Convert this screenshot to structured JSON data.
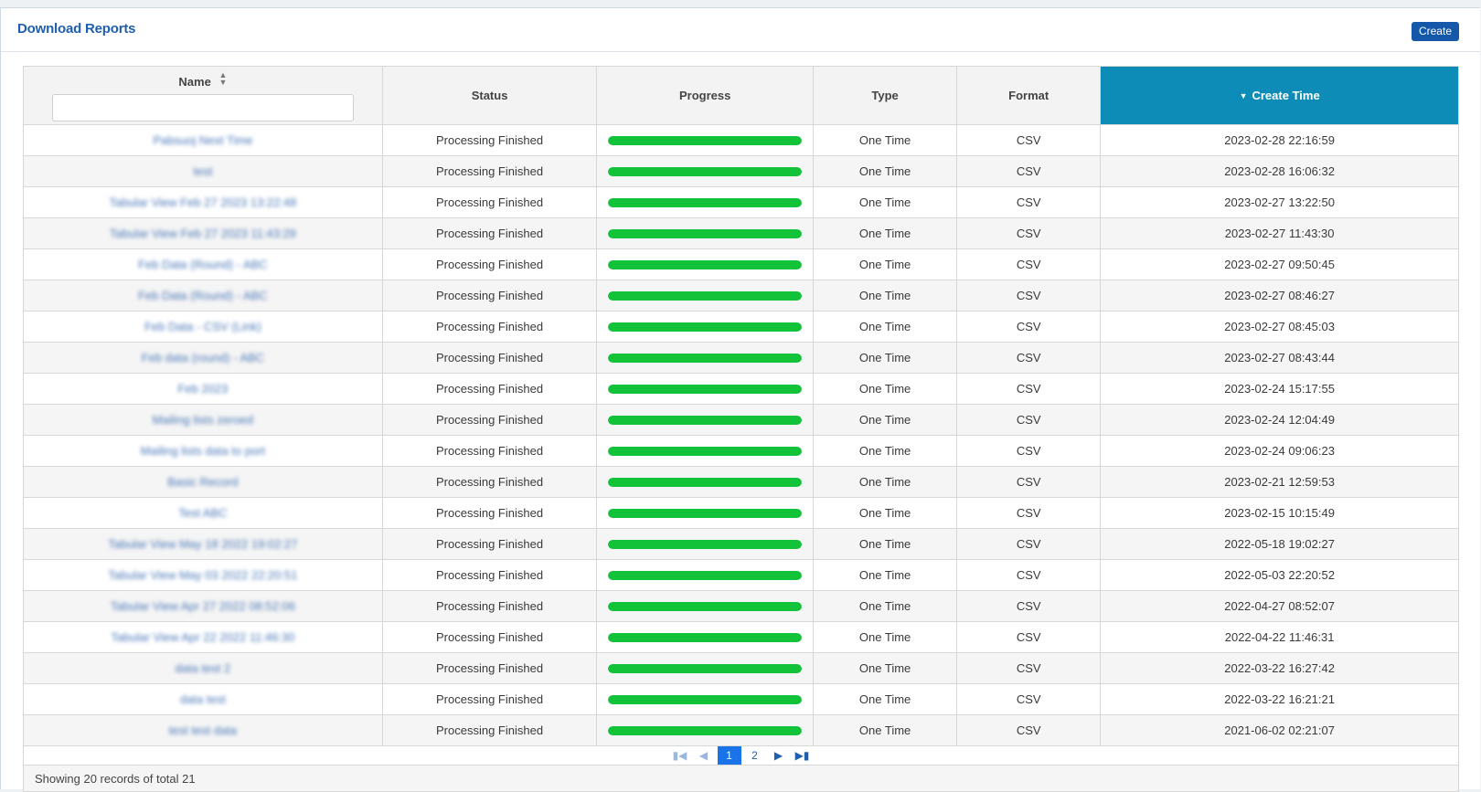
{
  "header": {
    "title": "Download Reports",
    "create_label": "Create"
  },
  "table": {
    "columns": {
      "name": "Name",
      "status": "Status",
      "progress": "Progress",
      "type": "Type",
      "format": "Format",
      "create_time": "Create Time"
    },
    "sort": {
      "column": "create_time",
      "direction": "desc"
    },
    "name_filter": {
      "value": "",
      "placeholder": ""
    },
    "progress_color": "#12c33a",
    "sorted_header_color": "#0e8cb8",
    "rows": [
      {
        "name": "Pabsuoj Next Time",
        "status": "Processing Finished",
        "progress": 100,
        "type": "One Time",
        "format": "CSV",
        "create_time": "2023-02-28 22:16:59"
      },
      {
        "name": "test",
        "status": "Processing Finished",
        "progress": 100,
        "type": "One Time",
        "format": "CSV",
        "create_time": "2023-02-28 16:06:32"
      },
      {
        "name": "Tabular View Feb 27 2023 13:22:48",
        "status": "Processing Finished",
        "progress": 100,
        "type": "One Time",
        "format": "CSV",
        "create_time": "2023-02-27 13:22:50"
      },
      {
        "name": "Tabular View Feb 27 2023 11:43:29",
        "status": "Processing Finished",
        "progress": 100,
        "type": "One Time",
        "format": "CSV",
        "create_time": "2023-02-27 11:43:30"
      },
      {
        "name": "Feb Data (Round) - ABC",
        "status": "Processing Finished",
        "progress": 100,
        "type": "One Time",
        "format": "CSV",
        "create_time": "2023-02-27 09:50:45"
      },
      {
        "name": "Feb Data (Round) - ABC",
        "status": "Processing Finished",
        "progress": 100,
        "type": "One Time",
        "format": "CSV",
        "create_time": "2023-02-27 08:46:27"
      },
      {
        "name": "Feb Data - CSV (Link)",
        "status": "Processing Finished",
        "progress": 100,
        "type": "One Time",
        "format": "CSV",
        "create_time": "2023-02-27 08:45:03"
      },
      {
        "name": "Feb data (round) - ABC",
        "status": "Processing Finished",
        "progress": 100,
        "type": "One Time",
        "format": "CSV",
        "create_time": "2023-02-27 08:43:44"
      },
      {
        "name": "Feb 2023",
        "status": "Processing Finished",
        "progress": 100,
        "type": "One Time",
        "format": "CSV",
        "create_time": "2023-02-24 15:17:55"
      },
      {
        "name": "Mailing lists zeroed",
        "status": "Processing Finished",
        "progress": 100,
        "type": "One Time",
        "format": "CSV",
        "create_time": "2023-02-24 12:04:49"
      },
      {
        "name": "Mailing lists data to port",
        "status": "Processing Finished",
        "progress": 100,
        "type": "One Time",
        "format": "CSV",
        "create_time": "2023-02-24 09:06:23"
      },
      {
        "name": "Basic Record",
        "status": "Processing Finished",
        "progress": 100,
        "type": "One Time",
        "format": "CSV",
        "create_time": "2023-02-21 12:59:53"
      },
      {
        "name": "Test ABC",
        "status": "Processing Finished",
        "progress": 100,
        "type": "One Time",
        "format": "CSV",
        "create_time": "2023-02-15 10:15:49"
      },
      {
        "name": "Tabular View May 18 2022 19:02:27",
        "status": "Processing Finished",
        "progress": 100,
        "type": "One Time",
        "format": "CSV",
        "create_time": "2022-05-18 19:02:27"
      },
      {
        "name": "Tabular View May 03 2022 22:20:51",
        "status": "Processing Finished",
        "progress": 100,
        "type": "One Time",
        "format": "CSV",
        "create_time": "2022-05-03 22:20:52"
      },
      {
        "name": "Tabular View Apr 27 2022 08:52:06",
        "status": "Processing Finished",
        "progress": 100,
        "type": "One Time",
        "format": "CSV",
        "create_time": "2022-04-27 08:52:07"
      },
      {
        "name": "Tabular View Apr 22 2022 11:46:30",
        "status": "Processing Finished",
        "progress": 100,
        "type": "One Time",
        "format": "CSV",
        "create_time": "2022-04-22 11:46:31"
      },
      {
        "name": "data test 2",
        "status": "Processing Finished",
        "progress": 100,
        "type": "One Time",
        "format": "CSV",
        "create_time": "2022-03-22 16:27:42"
      },
      {
        "name": "data test",
        "status": "Processing Finished",
        "progress": 100,
        "type": "One Time",
        "format": "CSV",
        "create_time": "2022-03-22 16:21:21"
      },
      {
        "name": "test test data",
        "status": "Processing Finished",
        "progress": 100,
        "type": "One Time",
        "format": "CSV",
        "create_time": "2021-06-02 02:21:07"
      }
    ]
  },
  "pagination": {
    "first_icon": "first-page-icon",
    "prev_icon": "prev-page-icon",
    "next_icon": "next-page-icon",
    "last_icon": "last-page-icon",
    "pages": [
      "1",
      "2"
    ],
    "current": "1"
  },
  "footer": {
    "summary": "Showing 20 records of total 21"
  }
}
